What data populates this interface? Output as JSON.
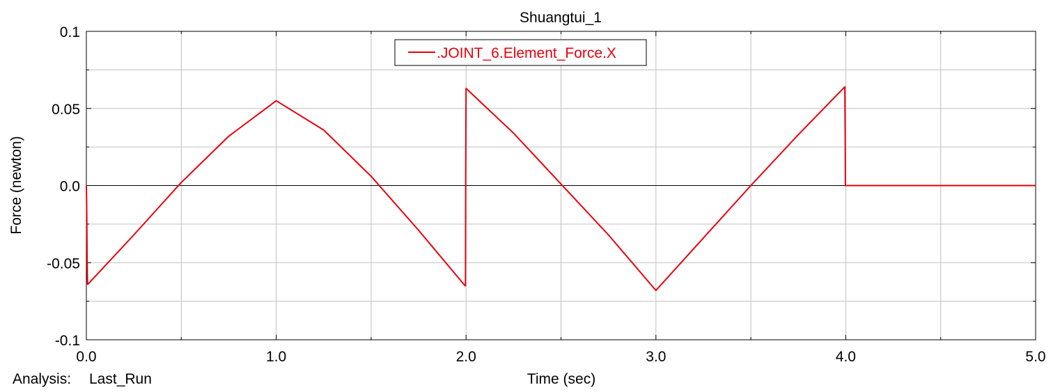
{
  "chart_data": {
    "type": "line",
    "title": "Shuangtui_1",
    "xlabel": "Time (sec)",
    "ylabel": "Force (newton)",
    "xlim": [
      0,
      5
    ],
    "ylim": [
      -0.1,
      0.1
    ],
    "x_ticks": [
      "0.0",
      "1.0",
      "2.0",
      "3.0",
      "4.0",
      "5.0"
    ],
    "y_ticks": [
      "-0.1",
      "-0.05",
      "0.0",
      "0.05",
      "0.1"
    ],
    "x_tick_values": [
      0,
      1,
      2,
      3,
      4,
      5
    ],
    "y_tick_values": [
      -0.1,
      -0.05,
      0,
      0.05,
      0.1
    ],
    "x_minor_step": 0.5,
    "y_minor_step": 0.025,
    "grid": true,
    "zero_line": true,
    "legend_position": "top-center",
    "series": [
      {
        "name": ".JOINT_6.Element_Force.X",
        "color": "#e8000b",
        "x": [
          0,
          0.002,
          0.004,
          0.006,
          0.008,
          0.25,
          0.5,
          0.75,
          1.0,
          1.25,
          1.5,
          1.75,
          1.995,
          1.997,
          1.998,
          2.0,
          2.25,
          2.5,
          2.75,
          3.0,
          3.25,
          3.5,
          3.75,
          3.995,
          3.997,
          3.998,
          4.0,
          4.5,
          5.0
        ],
        "y": [
          0.0,
          -0.016,
          -0.047,
          -0.064,
          -0.064,
          -0.032,
          0.002,
          0.032,
          0.055,
          0.036,
          0.006,
          -0.029,
          -0.065,
          -0.065,
          0.0,
          0.063,
          0.034,
          0.001,
          -0.032,
          -0.068,
          -0.034,
          0.0,
          0.033,
          0.064,
          0.032,
          0.0,
          0.0,
          0.0,
          0.0
        ]
      }
    ]
  },
  "footer": {
    "analysis_label": "Analysis:",
    "analysis_value": "Last_Run"
  }
}
